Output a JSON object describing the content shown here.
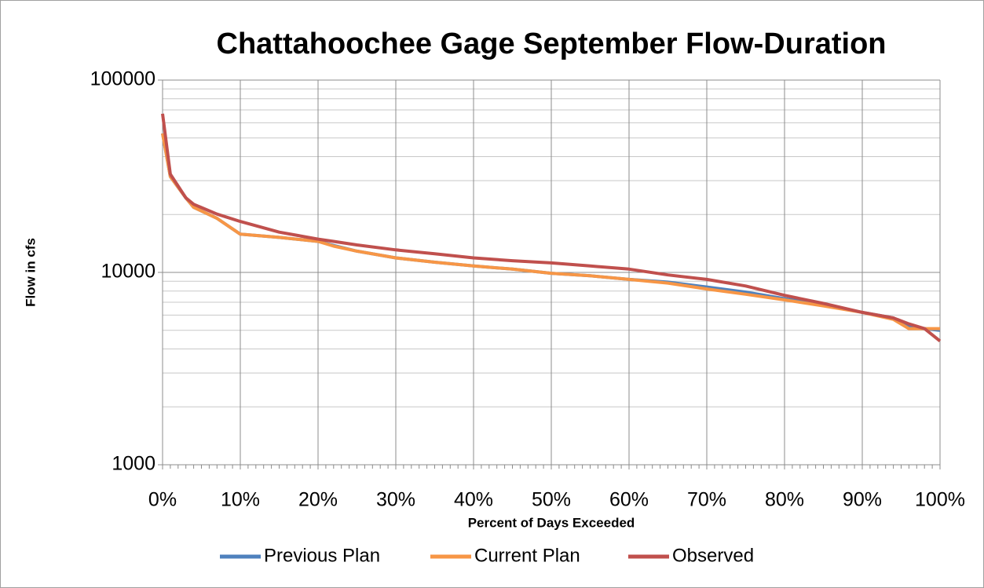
{
  "chart_data": {
    "type": "line",
    "title": "Chattahoochee Gage September Flow-Duration",
    "x_label": "Percent of Days Exceeded",
    "y_label": "Flow in cfs",
    "x": [
      0,
      1,
      3,
      4,
      7,
      10,
      15,
      20,
      22,
      25,
      30,
      35,
      40,
      45,
      50,
      55,
      60,
      65,
      70,
      75,
      80,
      85,
      90,
      94,
      96,
      98,
      100
    ],
    "series": [
      {
        "name": "Previous Plan",
        "color": "#4f81bd",
        "values": [
          52800,
          31500,
          24400,
          21800,
          19100,
          15800,
          15200,
          14500,
          13800,
          12900,
          11900,
          11300,
          10800,
          10400,
          9900,
          9600,
          9200,
          8900,
          8400,
          7900,
          7300,
          6800,
          6200,
          5800,
          5200,
          5100,
          5000
        ]
      },
      {
        "name": "Current Plan",
        "color": "#f79646",
        "values": [
          52800,
          31500,
          24400,
          21800,
          19100,
          15800,
          15200,
          14500,
          13700,
          12900,
          11900,
          11300,
          10800,
          10400,
          9900,
          9600,
          9200,
          8800,
          8200,
          7700,
          7200,
          6700,
          6200,
          5700,
          5100,
          5100,
          5100
        ]
      },
      {
        "name": "Observed",
        "color": "#c0504d",
        "values": [
          66800,
          32400,
          24400,
          22600,
          20100,
          18400,
          16200,
          14900,
          14500,
          13900,
          13100,
          12500,
          11900,
          11500,
          11200,
          10800,
          10400,
          9700,
          9200,
          8500,
          7600,
          6900,
          6200,
          5800,
          5400,
          5100,
          4400
        ]
      }
    ],
    "xlim": [
      0,
      100
    ],
    "xticks": [
      {
        "value": 0,
        "label": "0%"
      },
      {
        "value": 10,
        "label": "10%"
      },
      {
        "value": 20,
        "label": "20%"
      },
      {
        "value": 30,
        "label": "30%"
      },
      {
        "value": 40,
        "label": "40%"
      },
      {
        "value": 50,
        "label": "50%"
      },
      {
        "value": 60,
        "label": "60%"
      },
      {
        "value": 70,
        "label": "70%"
      },
      {
        "value": 80,
        "label": "80%"
      },
      {
        "value": 90,
        "label": "90%"
      },
      {
        "value": 100,
        "label": "100%"
      }
    ],
    "ylim": [
      1000,
      100000
    ],
    "yticks": [
      1000,
      10000,
      100000
    ],
    "yminorticks": [
      2000,
      3000,
      4000,
      5000,
      6000,
      7000,
      8000,
      9000,
      20000,
      30000,
      40000,
      50000,
      60000,
      70000,
      80000,
      90000
    ],
    "ylog": true,
    "grid": true,
    "legend": "bottom"
  }
}
